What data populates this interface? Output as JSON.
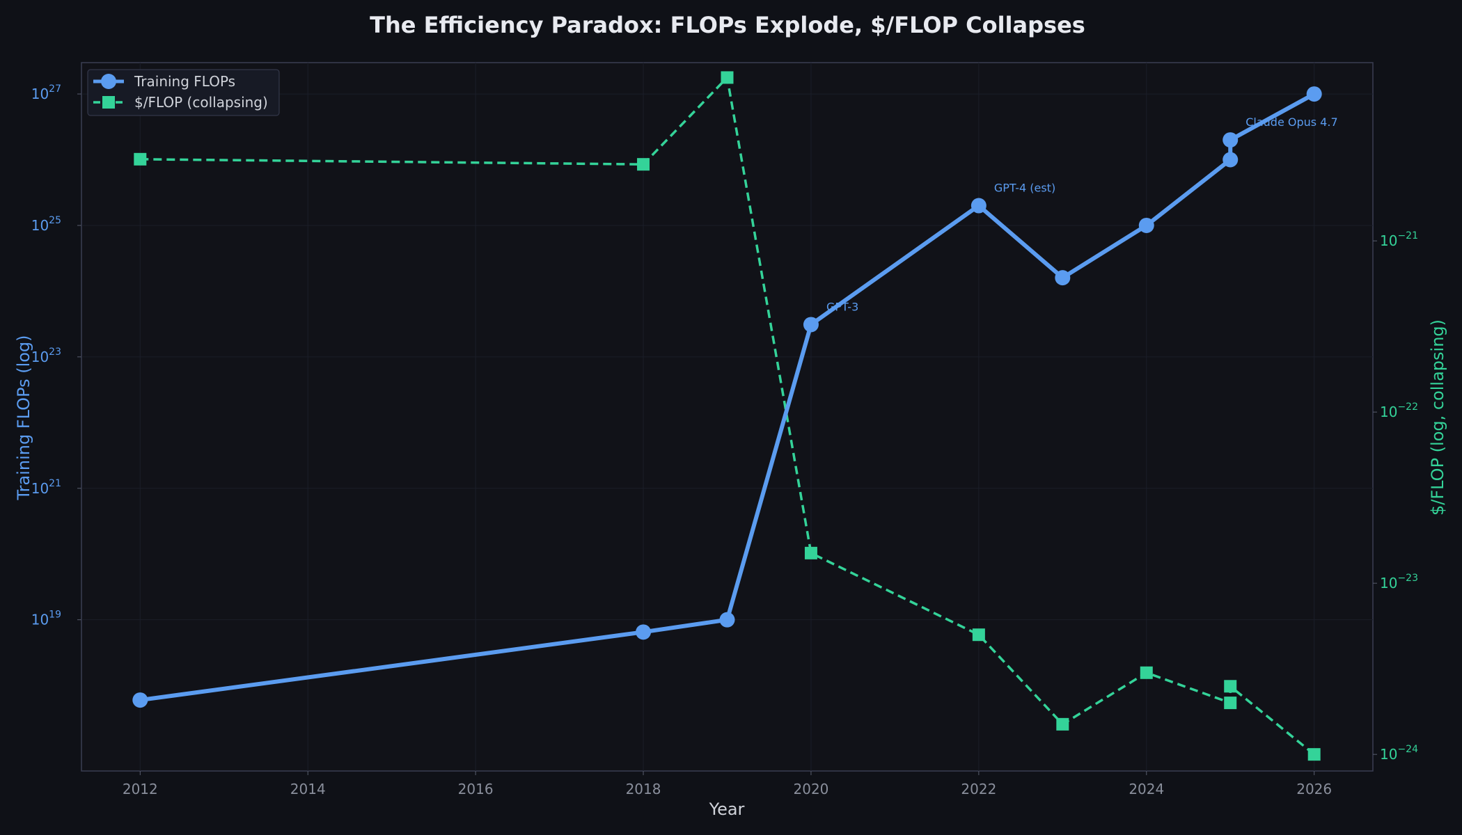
{
  "chart_data": {
    "type": "line",
    "title": "The Efficiency Paradox: FLOPs Explode, $/FLOP Collapses",
    "xlabel": "Year",
    "ylabel_left": "Training FLOPs (log)",
    "ylabel_right": "$/FLOP (log, collapsing)",
    "xlim": [
      2011.3,
      2026.7
    ],
    "xticks": [
      2012,
      2014,
      2016,
      2018,
      2020,
      2022,
      2024,
      2026
    ],
    "y_left": {
      "scale": "log",
      "range": [
        5e+16,
        3e+27
      ],
      "tick_exponents": [
        19,
        21,
        23,
        25,
        27
      ]
    },
    "y_right": {
      "scale": "log",
      "range": [
        8e-25,
        1.1e-20
      ],
      "tick_exponents": [
        -24,
        -23,
        -22,
        -21
      ]
    },
    "grid": true,
    "legend_position": "top-left",
    "colors": {
      "flops": "#5b9cf0",
      "cost": "#34d399",
      "background": "#0f1117",
      "frame": "#3a3e52"
    },
    "series": [
      {
        "name": "Training FLOPs",
        "axis": "left",
        "style": "solid-circle",
        "x": [
          2012,
          2018,
          2019,
          2020,
          2022,
          2023,
          2024,
          2025,
          2025,
          2026
        ],
        "y": [
          6e+17,
          6.5e+18,
          1e+19,
          3.1e+23,
          2e+25,
          1.6e+24,
          1e+25,
          1e+26,
          2e+26,
          1e+27
        ]
      },
      {
        "name": "$/FLOP (collapsing)",
        "axis": "right",
        "style": "dashed-square",
        "x": [
          2012,
          2018,
          2019,
          2020,
          2022,
          2023,
          2024,
          2025,
          2025,
          2026
        ],
        "y": [
          3e-21,
          2.8e-21,
          9e-21,
          1.5e-23,
          5e-24,
          1.5e-24,
          3e-24,
          2e-24,
          2.5e-24,
          1e-24
        ]
      }
    ],
    "annotations": [
      {
        "text": "GPT-3",
        "x": 2020,
        "y": 3.1e+23
      },
      {
        "text": "GPT-4 (est)",
        "x": 2022,
        "y": 2e+25
      },
      {
        "text": "Claude Opus 4.7",
        "x": 2025,
        "y": 2e+26
      }
    ]
  }
}
